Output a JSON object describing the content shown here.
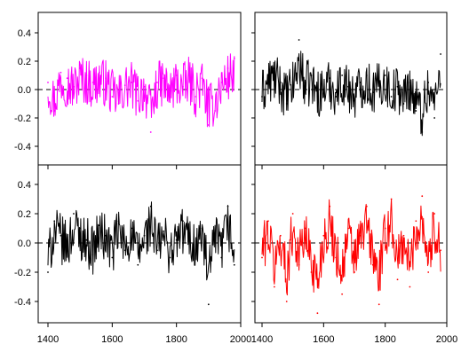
{
  "chart_data": [
    {
      "type": "line",
      "panel": "top-left",
      "color": "#ff00ff",
      "xlim": [
        1400,
        1980
      ],
      "ylim": [
        -0.52,
        0.52
      ],
      "y_ticks": [
        "-0.4",
        "-0.2",
        "0.0",
        "0.2",
        "0.4"
      ],
      "x_ticks": [
        "1400",
        "1600",
        "1800",
        "2000"
      ],
      "show_y_tick_labels": true,
      "show_x_tick_labels": false,
      "reference_line": 0,
      "series": [
        {
          "x": [
            1400,
            1420,
            1440,
            1460,
            1480,
            1500,
            1520,
            1540,
            1560,
            1580,
            1600,
            1620,
            1640,
            1660,
            1680,
            1700,
            1720,
            1740,
            1760,
            1780,
            1800,
            1820,
            1840,
            1860,
            1880,
            1900,
            1920,
            1940,
            1960,
            1980
          ],
          "y": [
            0.05,
            -0.15,
            0.12,
            0.08,
            0.02,
            0.15,
            0.1,
            0.05,
            0.12,
            0.08,
            -0.05,
            -0.1,
            0.03,
            0.05,
            -0.08,
            0.02,
            -0.3,
            0.05,
            0.08,
            -0.05,
            0.1,
            0.02,
            0.12,
            -0.05,
            0.08,
            -0.25,
            -0.15,
            0.05,
            0.15,
            0.22
          ]
        }
      ]
    },
    {
      "type": "line",
      "panel": "top-right",
      "color": "#000000",
      "xlim": [
        1400,
        1980
      ],
      "ylim": [
        -0.52,
        0.52
      ],
      "y_ticks": [
        "-0.4",
        "-0.2",
        "0.0",
        "0.2",
        "0.4"
      ],
      "x_ticks": [
        "1400",
        "1600",
        "1800",
        "2000"
      ],
      "show_y_tick_labels": false,
      "show_x_tick_labels": false,
      "reference_line": 0,
      "series": [
        {
          "x": [
            1400,
            1420,
            1440,
            1460,
            1480,
            1500,
            1520,
            1540,
            1560,
            1580,
            1600,
            1620,
            1640,
            1660,
            1680,
            1700,
            1720,
            1740,
            1760,
            1780,
            1800,
            1820,
            1840,
            1860,
            1880,
            1900,
            1920,
            1940,
            1960,
            1980
          ],
          "y": [
            -0.05,
            0.1,
            0.15,
            0.05,
            -0.1,
            0.05,
            0.35,
            0.05,
            0.1,
            -0.05,
            0.0,
            0.08,
            -0.05,
            0.1,
            0.02,
            -0.08,
            0.05,
            0.1,
            -0.02,
            0.05,
            0.1,
            -0.05,
            0.02,
            -0.1,
            0.05,
            -0.15,
            -0.3,
            0.05,
            -0.2,
            0.25
          ]
        }
      ]
    },
    {
      "type": "line",
      "panel": "bottom-left",
      "color": "#000000",
      "xlim": [
        1400,
        1980
      ],
      "ylim": [
        -0.52,
        0.52
      ],
      "y_ticks": [
        "-0.4",
        "-0.2",
        "0.0",
        "0.2",
        "0.4"
      ],
      "x_ticks": [
        "1400",
        "1600",
        "1800",
        "2000"
      ],
      "show_y_tick_labels": true,
      "show_x_tick_labels": true,
      "reference_line": 0,
      "series": [
        {
          "x": [
            1400,
            1420,
            1440,
            1460,
            1480,
            1500,
            1520,
            1540,
            1560,
            1580,
            1600,
            1620,
            1640,
            1660,
            1680,
            1700,
            1720,
            1740,
            1760,
            1780,
            1800,
            1820,
            1840,
            1860,
            1880,
            1900,
            1920,
            1940,
            1960,
            1980
          ],
          "y": [
            -0.2,
            0.15,
            0.05,
            -0.05,
            0.2,
            0.1,
            0.02,
            -0.08,
            0.12,
            0.05,
            -0.1,
            0.15,
            -0.05,
            0.1,
            -0.15,
            0.05,
            0.25,
            -0.05,
            0.08,
            -0.1,
            0.02,
            0.15,
            0.05,
            -0.05,
            0.1,
            -0.42,
            0.05,
            -0.1,
            0.25,
            -0.15
          ]
        }
      ]
    },
    {
      "type": "line",
      "panel": "bottom-right",
      "color": "#ff0000",
      "xlim": [
        1400,
        1980
      ],
      "ylim": [
        -0.52,
        0.52
      ],
      "y_ticks": [
        "-0.4",
        "-0.2",
        "0.0",
        "0.2",
        "0.4"
      ],
      "x_ticks": [
        "1400",
        "1600",
        "1800",
        "2000"
      ],
      "show_y_tick_labels": false,
      "show_x_tick_labels": true,
      "reference_line": 0,
      "series": [
        {
          "x": [
            1400,
            1420,
            1440,
            1460,
            1480,
            1500,
            1520,
            1540,
            1560,
            1580,
            1600,
            1620,
            1640,
            1660,
            1680,
            1700,
            1720,
            1740,
            1760,
            1780,
            1800,
            1820,
            1840,
            1860,
            1880,
            1900,
            1920,
            1940,
            1960,
            1980
          ],
          "y": [
            -0.1,
            0.15,
            -0.3,
            0.05,
            -0.4,
            0.2,
            -0.15,
            0.1,
            -0.2,
            -0.48,
            0.05,
            0.25,
            -0.1,
            -0.35,
            0.1,
            -0.2,
            0.05,
            0.25,
            -0.15,
            -0.42,
            0.1,
            0.3,
            -0.25,
            0.05,
            -0.3,
            0.15,
            0.32,
            -0.2,
            0.2,
            -0.05
          ]
        }
      ]
    }
  ]
}
